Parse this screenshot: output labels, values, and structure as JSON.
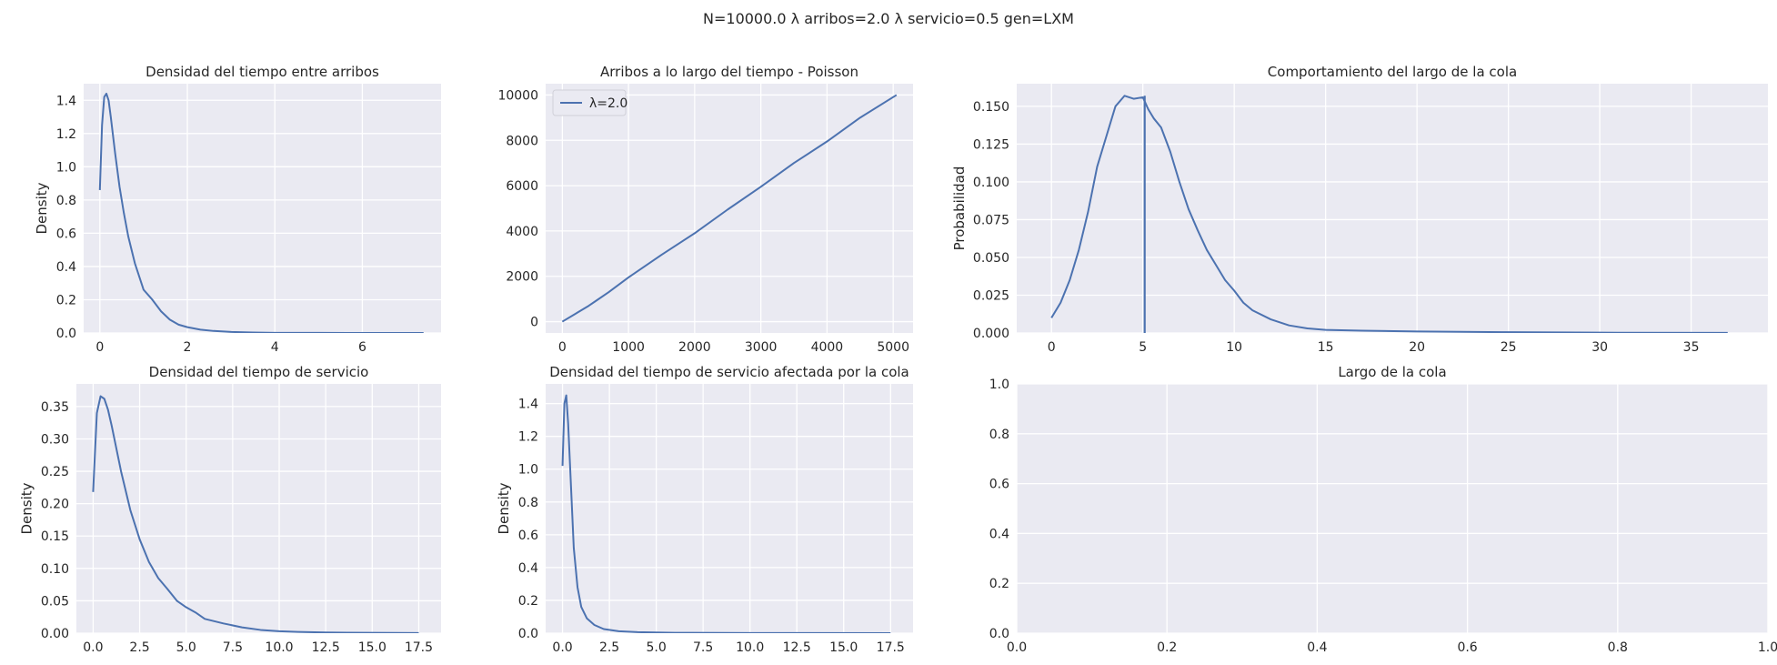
{
  "figure": {
    "suptitle": "N=10000.0  λ arribos=2.0  λ servicio=0.5 gen=LXM",
    "background": "#ffffff",
    "axes_bg": "#eaeaf2",
    "grid_color": "#ffffff",
    "line_color": "#4c72b0",
    "text_color": "#262626"
  },
  "chart_data": [
    {
      "id": "inter",
      "type": "line",
      "title": "Densidad del tiempo entre arribos",
      "xlabel": "",
      "ylabel": "Density",
      "xlim": [
        -0.37,
        7.8
      ],
      "ylim": [
        0,
        1.5
      ],
      "xticks": [
        0,
        2,
        4,
        6
      ],
      "xtick_labels": [
        "0",
        "2",
        "4",
        "6"
      ],
      "yticks": [
        0,
        0.2,
        0.4,
        0.6,
        0.8,
        1.0,
        1.2,
        1.4
      ],
      "ytick_labels": [
        "0.0",
        "0.2",
        "0.4",
        "0.6",
        "0.8",
        "1.0",
        "1.2",
        "1.4"
      ],
      "grid": true,
      "series": [
        {
          "x": [
            0,
            0.05,
            0.1,
            0.15,
            0.2,
            0.25,
            0.35,
            0.45,
            0.55,
            0.65,
            0.8,
            1.0,
            1.2,
            1.4,
            1.6,
            1.8,
            2.0,
            2.3,
            2.6,
            3.0,
            3.5,
            4.0,
            5.0,
            6.0,
            7.4
          ],
          "y": [
            0.86,
            1.25,
            1.42,
            1.44,
            1.4,
            1.3,
            1.08,
            0.88,
            0.72,
            0.58,
            0.42,
            0.26,
            0.2,
            0.13,
            0.08,
            0.05,
            0.035,
            0.02,
            0.012,
            0.006,
            0.003,
            0.001,
            0.0005,
            0.0002,
            0.0001
          ]
        }
      ]
    },
    {
      "id": "arribos",
      "type": "line",
      "title": "Arribos a lo largo del tiempo - Poisson",
      "xlabel": "",
      "ylabel": "",
      "xlim": [
        -252,
        5300
      ],
      "ylim": [
        -500,
        10500
      ],
      "xticks": [
        0,
        1000,
        2000,
        3000,
        4000,
        5000
      ],
      "xtick_labels": [
        "0",
        "1000",
        "2000",
        "3000",
        "4000",
        "5000"
      ],
      "yticks": [
        0,
        2000,
        4000,
        6000,
        8000,
        10000
      ],
      "ytick_labels": [
        "0",
        "2000",
        "4000",
        "6000",
        "8000",
        "10000"
      ],
      "grid": true,
      "legend": {
        "placement": "top-left",
        "entries": [
          "λ=2.0"
        ]
      },
      "series": [
        {
          "name": "λ=2.0",
          "x": [
            0,
            200,
            400,
            500,
            700,
            1000,
            1500,
            2000,
            2500,
            3000,
            3500,
            4000,
            4500,
            5050
          ],
          "y": [
            0,
            350,
            700,
            900,
            1300,
            1950,
            2950,
            3900,
            4950,
            5950,
            7000,
            7950,
            9000,
            10000
          ]
        }
      ]
    },
    {
      "id": "cola",
      "type": "line",
      "title": "Comportamiento del largo de la cola",
      "xlabel": "",
      "ylabel": "Probabilidad",
      "xlim": [
        -1.9,
        39.2
      ],
      "ylim": [
        0,
        0.165
      ],
      "xticks": [
        0,
        5,
        10,
        15,
        20,
        25,
        30,
        35
      ],
      "xtick_labels": [
        "0",
        "5",
        "10",
        "15",
        "20",
        "25",
        "30",
        "35"
      ],
      "yticks": [
        0,
        0.025,
        0.05,
        0.075,
        0.1,
        0.125,
        0.15
      ],
      "ytick_labels": [
        "0.000",
        "0.025",
        "0.050",
        "0.075",
        "0.100",
        "0.125",
        "0.150"
      ],
      "grid": true,
      "vline": 5.1,
      "series": [
        {
          "x": [
            0,
            0.5,
            1,
            1.5,
            2,
            2.5,
            3,
            3.5,
            4,
            4.5,
            5,
            5.3,
            5.6,
            6,
            6.5,
            7,
            7.5,
            8,
            8.5,
            9,
            9.5,
            10,
            10.5,
            11,
            12,
            13,
            14,
            15,
            17,
            20,
            25,
            30,
            37
          ],
          "y": [
            0.01,
            0.02,
            0.035,
            0.055,
            0.08,
            0.11,
            0.13,
            0.15,
            0.157,
            0.155,
            0.156,
            0.148,
            0.142,
            0.136,
            0.12,
            0.1,
            0.082,
            0.068,
            0.055,
            0.045,
            0.035,
            0.028,
            0.02,
            0.015,
            0.009,
            0.005,
            0.003,
            0.002,
            0.0015,
            0.001,
            0.0005,
            0.0002,
            0.0001
          ]
        }
      ]
    },
    {
      "id": "servicio",
      "type": "line",
      "title": "Densidad del tiempo de servicio",
      "xlabel": "",
      "ylabel": "Density",
      "xlim": [
        -0.9,
        18.7
      ],
      "ylim": [
        0,
        0.385
      ],
      "xticks": [
        0,
        2.5,
        5,
        7.5,
        10,
        12.5,
        15,
        17.5
      ],
      "xtick_labels": [
        "0.0",
        "2.5",
        "5.0",
        "7.5",
        "10.0",
        "12.5",
        "15.0",
        "17.5"
      ],
      "yticks": [
        0,
        0.05,
        0.1,
        0.15,
        0.2,
        0.25,
        0.3,
        0.35
      ],
      "ytick_labels": [
        "0.00",
        "0.05",
        "0.10",
        "0.15",
        "0.20",
        "0.25",
        "0.30",
        "0.35"
      ],
      "grid": true,
      "series": [
        {
          "x": [
            0,
            0.2,
            0.4,
            0.6,
            0.8,
            1.0,
            1.5,
            2.0,
            2.5,
            3.0,
            3.5,
            4.0,
            4.5,
            5.0,
            5.5,
            6.0,
            7.0,
            8.0,
            9.0,
            10.0,
            11.0,
            12.5,
            15.0,
            17.5
          ],
          "y": [
            0.218,
            0.34,
            0.366,
            0.362,
            0.345,
            0.32,
            0.25,
            0.19,
            0.145,
            0.11,
            0.085,
            0.068,
            0.05,
            0.04,
            0.032,
            0.022,
            0.015,
            0.009,
            0.005,
            0.003,
            0.002,
            0.001,
            0.0005,
            0.0002
          ]
        }
      ]
    },
    {
      "id": "afectada",
      "type": "line",
      "title": "Densidad del tiempo de servicio afectada por la cola",
      "xlabel": "",
      "ylabel": "Density",
      "xlim": [
        -0.9,
        18.7
      ],
      "ylim": [
        0,
        1.52
      ],
      "xticks": [
        0,
        2.5,
        5,
        7.5,
        10,
        12.5,
        15,
        17.5
      ],
      "xtick_labels": [
        "0.0",
        "2.5",
        "5.0",
        "7.5",
        "10.0",
        "12.5",
        "15.0",
        "17.5"
      ],
      "yticks": [
        0,
        0.2,
        0.4,
        0.6,
        0.8,
        1.0,
        1.2,
        1.4
      ],
      "ytick_labels": [
        "0.0",
        "0.2",
        "0.4",
        "0.6",
        "0.8",
        "1.0",
        "1.2",
        "1.4"
      ],
      "grid": true,
      "series": [
        {
          "x": [
            0,
            0.1,
            0.2,
            0.3,
            0.45,
            0.6,
            0.8,
            1.0,
            1.3,
            1.7,
            2.2,
            3.0,
            4.0,
            6.0,
            10.0,
            17.5
          ],
          "y": [
            1.02,
            1.4,
            1.45,
            1.28,
            0.9,
            0.52,
            0.28,
            0.16,
            0.09,
            0.05,
            0.025,
            0.012,
            0.006,
            0.002,
            0.001,
            0.0002
          ]
        }
      ]
    },
    {
      "id": "largo",
      "type": "line",
      "title": "Largo de la cola",
      "xlabel": "",
      "ylabel": "",
      "xlim": [
        0,
        1
      ],
      "ylim": [
        0,
        1
      ],
      "xticks": [
        0,
        0.2,
        0.4,
        0.6,
        0.8,
        1.0
      ],
      "xtick_labels": [
        "0.0",
        "0.2",
        "0.4",
        "0.6",
        "0.8",
        "1.0"
      ],
      "yticks": [
        0,
        0.2,
        0.4,
        0.6,
        0.8,
        1.0
      ],
      "ytick_labels": [
        "0.0",
        "0.2",
        "0.4",
        "0.6",
        "0.8",
        "1.0"
      ],
      "grid": true,
      "series": []
    }
  ]
}
